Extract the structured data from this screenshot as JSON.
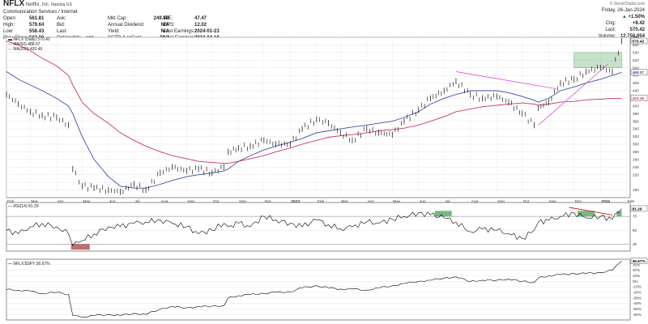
{
  "header": {
    "symbol": "NFLX",
    "company": "Netflix, Inc.",
    "exchange": "Nasdaq GS",
    "sector": "Communication Services / Internet",
    "col1": [
      [
        "Open:",
        "561.81"
      ],
      [
        "High:",
        "579.64"
      ],
      [
        "Low:",
        "558.43"
      ],
      [
        "Prev Close:",
        "562.00"
      ]
    ],
    "ask": [
      "Ask:",
      ""
    ],
    "bid": [
      "Bid:",
      ""
    ],
    "last": [
      "Last:",
      ""
    ],
    "optionable": [
      "Optionable:",
      "yes"
    ],
    "col3": [
      [
        "Mkt Cap:",
        "249.8B"
      ],
      [
        "Annual Dividend:",
        "N/A"
      ],
      [
        "Yield:",
        "N/A"
      ],
      [
        "SCTR (LrgCap):",
        "98.2"
      ]
    ],
    "col4": [
      [
        "P/E:",
        "47.47"
      ],
      [
        "EPS:",
        "12.02"
      ],
      [
        "Last Earnings:",
        "2024-01-23"
      ],
      [
        "Next Earnings:",
        "2024-04-16"
      ]
    ],
    "watermark": "© StockCharts.com",
    "date": "Friday, 26-Jan-2024",
    "change_pct": "+1.50%",
    "chg": [
      "Chg:",
      "+8.42"
    ],
    "last_right": [
      "Last:",
      "570.42"
    ],
    "volume": [
      "Volume:",
      "12,750,054"
    ]
  },
  "legend": {
    "price": "NFLX (Daily) 570.42",
    "ma50": "MA(50) 488.07",
    "ma200": "MA(200) 420.46",
    "rsi": "RSI(14) 81.29",
    "rel": "NFLX:$SPY 36.67%"
  },
  "colors": {
    "price": "#000000",
    "ma50": "#3a4ea8",
    "ma200": "#cc3366",
    "trend": "#d94fd9",
    "rsi_down": "#cc2222",
    "box": "#5fa86b",
    "red_fill": "#a03030"
  },
  "chart_data": [
    {
      "type": "line",
      "title": "NFLX (Daily) 570.42",
      "x_dates": [
        "2022-02-01",
        "2022-02-15",
        "2022-03-01",
        "2022-03-15",
        "2022-04-01",
        "2022-04-15",
        "2022-04-20",
        "2022-05-01",
        "2022-05-15",
        "2022-06-01",
        "2022-06-15",
        "2022-07-01",
        "2022-07-15",
        "2022-08-01",
        "2022-08-15",
        "2022-09-01",
        "2022-09-15",
        "2022-10-01",
        "2022-10-15",
        "2022-10-20",
        "2022-11-01",
        "2022-11-15",
        "2022-12-01",
        "2022-12-15",
        "2023-01-01",
        "2023-01-15",
        "2023-02-01",
        "2023-02-15",
        "2023-03-01",
        "2023-03-15",
        "2023-04-01",
        "2023-04-15",
        "2023-05-01",
        "2023-05-15",
        "2023-06-01",
        "2023-06-15",
        "2023-07-01",
        "2023-07-15",
        "2023-08-01",
        "2023-08-15",
        "2023-09-01",
        "2023-09-15",
        "2023-10-01",
        "2023-10-15",
        "2023-10-20",
        "2023-11-01",
        "2023-11-15",
        "2023-12-01",
        "2023-12-15",
        "2024-01-01",
        "2024-01-15",
        "2024-01-26"
      ],
      "series": [
        {
          "name": "NFLX (Daily) 570.42",
          "values": [
            430,
            405,
            385,
            375,
            370,
            350,
            235,
            190,
            185,
            180,
            175,
            195,
            180,
            225,
            240,
            230,
            235,
            225,
            240,
            280,
            290,
            295,
            310,
            300,
            300,
            340,
            365,
            355,
            330,
            310,
            340,
            330,
            325,
            360,
            390,
            420,
            440,
            465,
            430,
            420,
            425,
            410,
            380,
            350,
            395,
            410,
            460,
            470,
            490,
            500,
            490,
            570
          ]
        },
        {
          "name": "MA(50) 488.07",
          "values": [
            490,
            470,
            455,
            440,
            420,
            400,
            380,
            320,
            260,
            215,
            190,
            185,
            185,
            195,
            205,
            215,
            220,
            225,
            230,
            235,
            255,
            270,
            285,
            295,
            305,
            315,
            330,
            335,
            340,
            345,
            350,
            355,
            360,
            370,
            385,
            405,
            420,
            430,
            440,
            440,
            440,
            435,
            425,
            415,
            410,
            420,
            440,
            450,
            460,
            470,
            480,
            488
          ]
        },
        {
          "name": "MA(200) 420.46",
          "values": [
            570,
            560,
            545,
            525,
            505,
            480,
            455,
            410,
            380,
            355,
            330,
            310,
            295,
            280,
            270,
            262,
            255,
            252,
            250,
            250,
            255,
            262,
            270,
            280,
            290,
            300,
            310,
            318,
            322,
            325,
            330,
            335,
            338,
            342,
            350,
            360,
            372,
            385,
            392,
            398,
            402,
            405,
            408,
            405,
            402,
            405,
            410,
            412,
            416,
            418,
            420,
            420
          ]
        }
      ],
      "ylim": [
        160,
        580
      ],
      "y_ticks": [
        180,
        200,
        220,
        240,
        260,
        280,
        300,
        320,
        340,
        360,
        380,
        400,
        420,
        440,
        460,
        480,
        500,
        520,
        540,
        560,
        580
      ],
      "y_tick_labels": [
        "180",
        "",
        "220",
        "240",
        "260",
        "280",
        "300",
        "320",
        "340",
        "360",
        "380",
        "400",
        "420",
        "440",
        "460",
        "480",
        "500",
        "520",
        "540",
        "560",
        "580"
      ],
      "x_tick_labels": [
        "Feb",
        "Mar",
        "Apr",
        "May",
        "Jun",
        "Jul",
        "Aug",
        "Sep",
        "Oct",
        "Nov",
        "Dec",
        "2023",
        "Feb",
        "Mar",
        "Apr",
        "May",
        "Jun",
        "Jul",
        "Aug",
        "Sep",
        "Oct",
        "Nov",
        "Dec",
        "2024",
        "Feb"
      ],
      "last_value_label": "570.42",
      "ma50_label": "488.07",
      "ma200_label": "420.46",
      "grid": true
    },
    {
      "type": "line",
      "title": "RSI(14) 81.29",
      "series": [
        {
          "name": "RSI(14) 81.29",
          "values": [
            50,
            45,
            55,
            60,
            55,
            45,
            28,
            35,
            45,
            55,
            55,
            60,
            62,
            65,
            60,
            55,
            45,
            50,
            60,
            55,
            60,
            55,
            70,
            65,
            60,
            55,
            65,
            58,
            52,
            55,
            62,
            60,
            66,
            70,
            75,
            72,
            68,
            62,
            48,
            52,
            50,
            45,
            38,
            50,
            62,
            64,
            70,
            75,
            68,
            70,
            66,
            81
          ]
        }
      ],
      "ylim": [
        20,
        90
      ],
      "y_ticks": [
        30,
        50,
        70
      ],
      "last_value_label": "81.29"
    },
    {
      "type": "line",
      "title": "NFLX:$SPY 36.67%",
      "series": [
        {
          "name": "NFLX:$SPY 36.67%",
          "values": [
            -15,
            -16,
            -18,
            -22,
            -20,
            -24,
            -62,
            -65,
            -62,
            -60,
            -62,
            -58,
            -60,
            -50,
            -46,
            -48,
            -46,
            -45,
            -44,
            -30,
            -26,
            -24,
            -22,
            -20,
            -19,
            -12,
            -8,
            -12,
            -14,
            -14,
            -16,
            -12,
            -8,
            -4,
            0,
            2,
            6,
            8,
            0,
            2,
            2,
            4,
            0,
            -2,
            6,
            10,
            12,
            14,
            14,
            16,
            20,
            36.67
          ]
        }
      ],
      "ylim": [
        -70,
        40
      ],
      "y_ticks": [
        -60,
        -50,
        -40,
        -30,
        -20,
        -10,
        0,
        10,
        20,
        30
      ],
      "y_tick_labels": [
        "-60%",
        "-50%",
        "-40%",
        "-30%",
        "-20%",
        "-10%",
        "0%",
        "10%",
        "20%",
        "30%"
      ],
      "last_value_label": "36.67%"
    }
  ]
}
